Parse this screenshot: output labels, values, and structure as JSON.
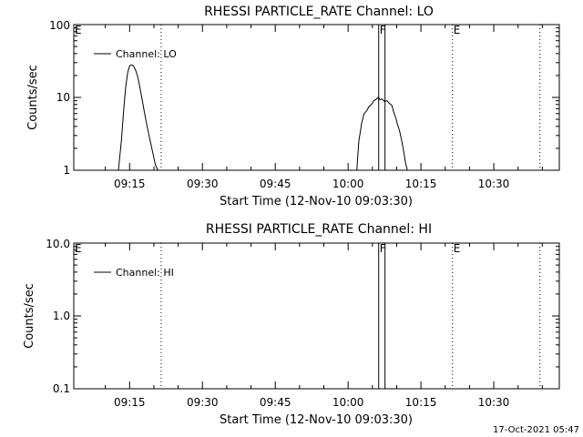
{
  "footer_timestamp": "17-Oct-2021 05:47",
  "chart_data": [
    {
      "type": "line",
      "title": "RHESSI PARTICLE_RATE Channel: LO",
      "xlabel": "Start Time (12-Nov-10 09:03:30)",
      "ylabel": "Counts/sec",
      "y_scale": "log",
      "ylim": [
        1,
        100
      ],
      "y_ticks": [
        "1",
        "10",
        "100"
      ],
      "x_ticks": [
        "09:15",
        "09:30",
        "09:45",
        "10:00",
        "10:15",
        "10:30"
      ],
      "x_tick_minutes": [
        555,
        570,
        585,
        600,
        615,
        630
      ],
      "xlim_minutes": [
        543.5,
        643.5
      ],
      "legend": "Channel: LO",
      "legend_position": "top-left",
      "markers": [
        {
          "label": "E",
          "minute": 543.5,
          "style": "dotted"
        },
        {
          "label": "",
          "minute": 561.5,
          "style": "dotted"
        },
        {
          "label": "F",
          "minute": 606.3,
          "style": "solid"
        },
        {
          "label": "",
          "minute": 607.6,
          "style": "solid"
        },
        {
          "label": "E",
          "minute": 621.5,
          "style": "dotted"
        },
        {
          "label": "",
          "minute": 639.5,
          "style": "dotted"
        }
      ],
      "series": [
        {
          "x": [
            552.7,
            553.3,
            553.8,
            554.2,
            554.6,
            555.0,
            555.4,
            555.8,
            556.2,
            556.6,
            557.0,
            557.5,
            558.0,
            558.6,
            559.2,
            559.8,
            560.3,
            560.8
          ],
          "y": [
            1,
            2.5,
            7,
            14,
            22,
            27,
            28,
            27,
            24,
            20,
            15,
            10,
            6.5,
            4,
            2.6,
            1.7,
            1.2,
            1
          ]
        },
        {
          "x": [
            601.8,
            602.2,
            602.8,
            603.3,
            603.8,
            604.3,
            604.8,
            605.3,
            605.8,
            606.2,
            606.6,
            607.0,
            607.5,
            608.0,
            608.5,
            609.0,
            609.4,
            609.8,
            610.2,
            610.6,
            611.0,
            611.4,
            611.8,
            612.2
          ],
          "y": [
            1,
            2.5,
            4.5,
            6,
            6.5,
            7.5,
            8,
            9,
            9.5,
            10,
            9.3,
            9.5,
            8.8,
            9,
            8.3,
            7.8,
            6.3,
            5.3,
            4.2,
            3.5,
            2.6,
            1.9,
            1.3,
            1
          ]
        }
      ]
    },
    {
      "type": "line",
      "title": "RHESSI PARTICLE_RATE Channel: HI",
      "xlabel": "Start Time (12-Nov-10 09:03:30)",
      "ylabel": "Counts/sec",
      "y_scale": "log",
      "ylim": [
        0.1,
        10
      ],
      "y_ticks": [
        "0.1",
        "1.0",
        "10.0"
      ],
      "x_ticks": [
        "09:15",
        "09:30",
        "09:45",
        "10:00",
        "10:15",
        "10:30"
      ],
      "x_tick_minutes": [
        555,
        570,
        585,
        600,
        615,
        630
      ],
      "xlim_minutes": [
        543.5,
        643.5
      ],
      "legend": "Channel: HI",
      "legend_position": "top-left",
      "markers": [
        {
          "label": "E",
          "minute": 543.5,
          "style": "dotted"
        },
        {
          "label": "",
          "minute": 561.5,
          "style": "dotted"
        },
        {
          "label": "F",
          "minute": 606.3,
          "style": "solid"
        },
        {
          "label": "",
          "minute": 607.6,
          "style": "solid"
        },
        {
          "label": "E",
          "minute": 621.5,
          "style": "dotted"
        },
        {
          "label": "",
          "minute": 639.5,
          "style": "dotted"
        }
      ],
      "series": []
    }
  ]
}
